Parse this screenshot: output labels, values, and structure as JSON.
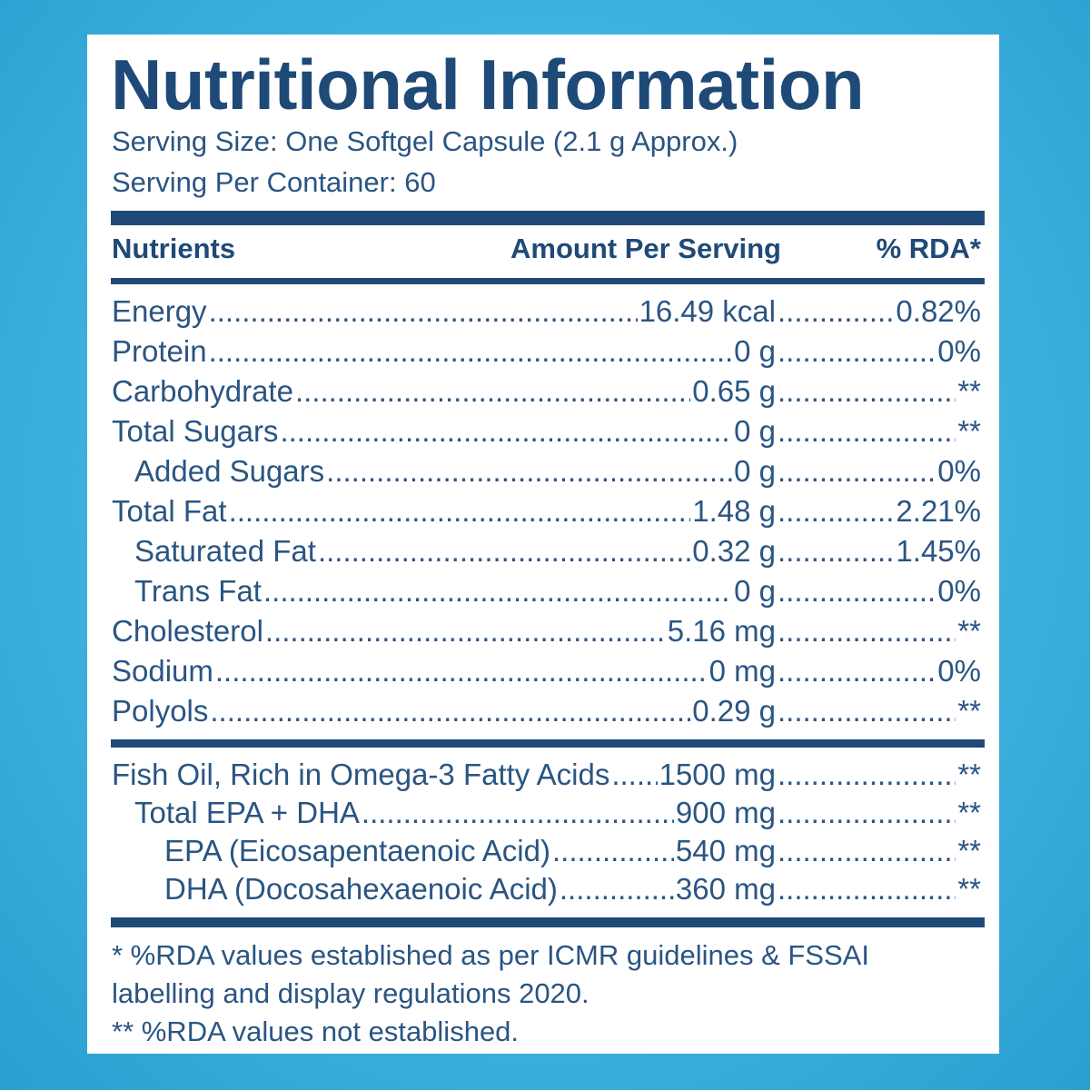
{
  "title": "Nutritional Information",
  "serving_size": "Serving Size: One Softgel Capsule (2.1 g Approx.)",
  "servings_per_container": "Serving Per Container: 60",
  "headers": {
    "nutrients": "Nutrients",
    "amount": "Amount Per Serving",
    "rda": "% RDA*"
  },
  "nutrients": [
    {
      "name": "Energy",
      "amount": "16.49 kcal",
      "rda": "0.82%"
    },
    {
      "name": "Protein",
      "amount": "0 g",
      "rda": "0%"
    },
    {
      "name": "Carbohydrate",
      "amount": "0.65 g",
      "rda": "**"
    },
    {
      "name": "Total Sugars",
      "amount": "0 g",
      "rda": "**"
    },
    {
      "name": "Added Sugars",
      "amount": "0 g",
      "rda": "0%"
    },
    {
      "name": "Total Fat",
      "amount": "1.48 g",
      "rda": "2.21%"
    },
    {
      "name": "Saturated Fat",
      "amount": "0.32 g",
      "rda": "1.45%"
    },
    {
      "name": "Trans Fat",
      "amount": "0 g",
      "rda": "0%"
    },
    {
      "name": "Cholesterol",
      "amount": "5.16 mg",
      "rda": "**"
    },
    {
      "name": "Sodium",
      "amount": "0 mg",
      "rda": "0%"
    },
    {
      "name": "Polyols",
      "amount": "0.29 g",
      "rda": "**"
    }
  ],
  "oils": [
    {
      "name": "Fish Oil, Rich in Omega-3 Fatty Acids",
      "amount": "1500 mg",
      "rda": "**"
    },
    {
      "name": "Total EPA + DHA",
      "amount": "900 mg",
      "rda": "**"
    },
    {
      "name": "EPA (Eicosapentaenoic Acid)",
      "amount": "540 mg",
      "rda": "**"
    },
    {
      "name": "DHA (Docosahexaenoic Acid)",
      "amount": "360 mg",
      "rda": "**"
    }
  ],
  "footnotes": {
    "line1": "* %RDA values established as per ICMR guidelines & FSSAI",
    "line2": "labelling and display regulations 2020.",
    "line3": "** %RDA values not established."
  },
  "colors": {
    "ink": "#1f4a78",
    "background": "#3fb3df",
    "panel": "#ffffff"
  }
}
